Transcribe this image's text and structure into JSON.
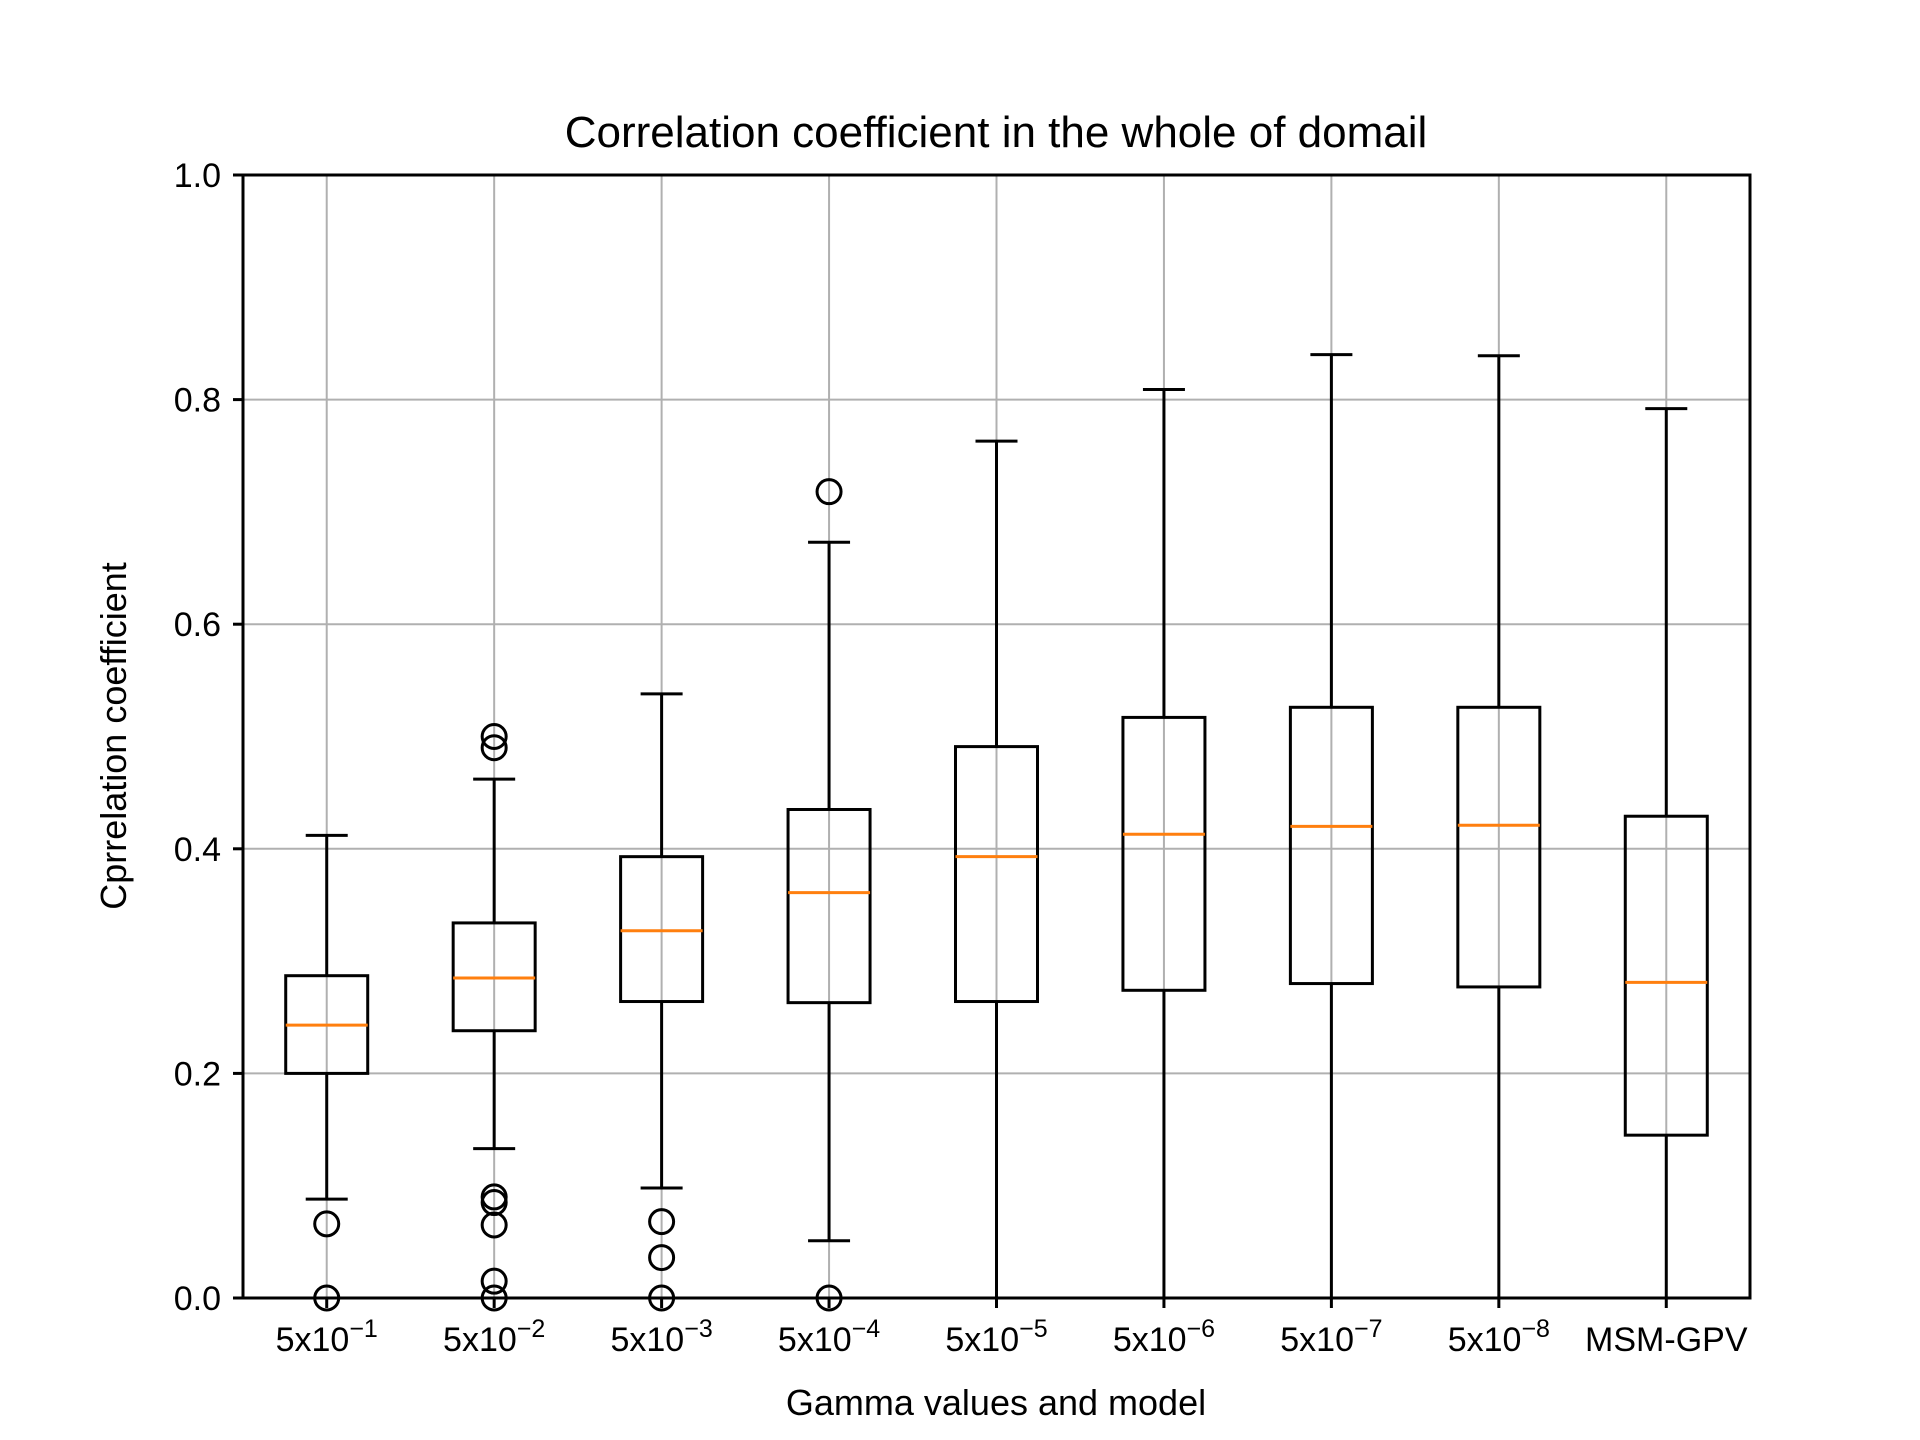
{
  "chart_data": {
    "type": "box",
    "title": "Correlation coefficient in the whole of domail",
    "xlabel": "Gamma values and model",
    "ylabel": "Cprrelation coefficient",
    "ylim": [
      0,
      1.0
    ],
    "yticks": [
      "0.0",
      "0.2",
      "0.4",
      "0.6",
      "0.8",
      "1.0"
    ],
    "grid": true,
    "colors": {
      "box": "#000000",
      "median": "#ff7f0e",
      "grid": "#b0b0b0",
      "flier": "#000000"
    },
    "categories": [
      {
        "base": "5x10",
        "exp": "−1"
      },
      {
        "base": "5x10",
        "exp": "−2"
      },
      {
        "base": "5x10",
        "exp": "−3"
      },
      {
        "base": "5x10",
        "exp": "−4"
      },
      {
        "base": "5x10",
        "exp": "−5"
      },
      {
        "base": "5x10",
        "exp": "−6"
      },
      {
        "base": "5x10",
        "exp": "−7"
      },
      {
        "base": "5x10",
        "exp": "−8"
      },
      {
        "base": "MSM-GPV",
        "exp": ""
      }
    ],
    "boxes": [
      {
        "whislo": 0.088,
        "q1": 0.2,
        "med": 0.243,
        "q3": 0.287,
        "whishi": 0.412,
        "fliers": [
          0.066,
          0.0
        ]
      },
      {
        "whislo": 0.133,
        "q1": 0.238,
        "med": 0.285,
        "q3": 0.334,
        "whishi": 0.462,
        "fliers": [
          0.5,
          0.49,
          0.09,
          0.085,
          0.065,
          0.015,
          0.0
        ]
      },
      {
        "whislo": 0.098,
        "q1": 0.264,
        "med": 0.327,
        "q3": 0.393,
        "whishi": 0.538,
        "fliers": [
          0.068,
          0.036,
          0.0
        ]
      },
      {
        "whislo": 0.051,
        "q1": 0.263,
        "med": 0.361,
        "q3": 0.435,
        "whishi": 0.673,
        "fliers": [
          0.718,
          0.0
        ]
      },
      {
        "whislo": 0.0,
        "q1": 0.264,
        "med": 0.393,
        "q3": 0.491,
        "whishi": 0.763,
        "fliers": []
      },
      {
        "whislo": 0.0,
        "q1": 0.274,
        "med": 0.413,
        "q3": 0.517,
        "whishi": 0.809,
        "fliers": []
      },
      {
        "whislo": 0.0,
        "q1": 0.28,
        "med": 0.42,
        "q3": 0.526,
        "whishi": 0.84,
        "fliers": []
      },
      {
        "whislo": 0.0,
        "q1": 0.277,
        "med": 0.421,
        "q3": 0.526,
        "whishi": 0.839,
        "fliers": []
      },
      {
        "whislo": 0.0,
        "q1": 0.145,
        "med": 0.281,
        "q3": 0.429,
        "whishi": 0.792,
        "fliers": []
      }
    ]
  }
}
